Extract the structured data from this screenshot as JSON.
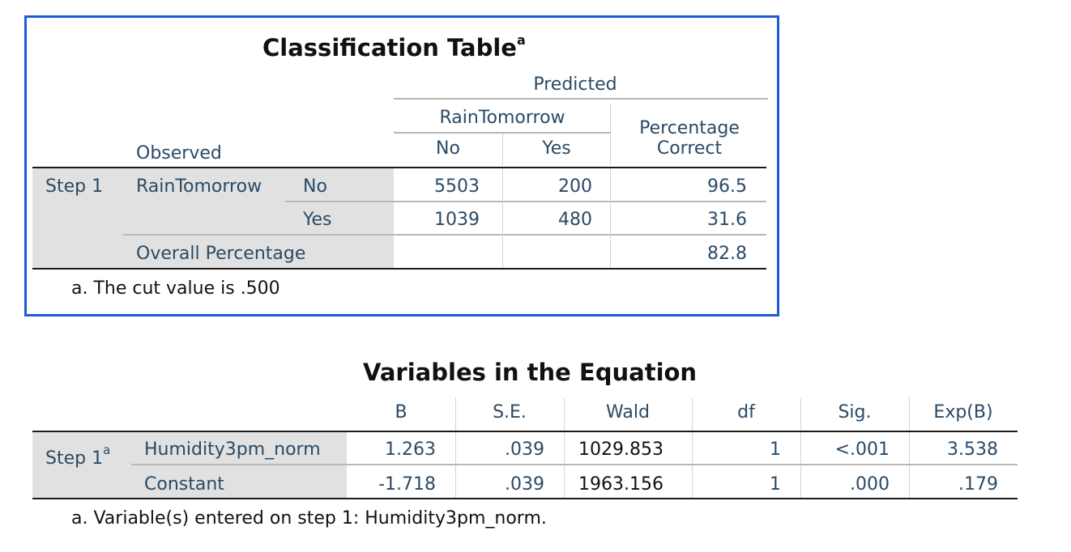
{
  "classification": {
    "title": "Classification Table",
    "title_sup": "a",
    "predicted": "Predicted",
    "rain_tomorrow": "RainTomorrow",
    "observed": "Observed",
    "col_no": "No",
    "col_yes": "Yes",
    "pct_correct_line1": "Percentage",
    "pct_correct_line2": "Correct",
    "step": "Step 1",
    "row_var": "RainTomorrow",
    "rows": [
      {
        "label": "No",
        "no": "5503",
        "yes": "200",
        "pct": "96.5"
      },
      {
        "label": "Yes",
        "no": "1039",
        "yes": "480",
        "pct": "31.6"
      }
    ],
    "overall_label": "Overall Percentage",
    "overall_pct": "82.8",
    "footnote": "a. The cut value is .500"
  },
  "variables": {
    "title": "Variables in the Equation",
    "headers": [
      "B",
      "S.E.",
      "Wald",
      "df",
      "Sig.",
      "Exp(B)"
    ],
    "step": "Step 1",
    "step_sup": "a",
    "rows": [
      {
        "label": "Humidity3pm_norm",
        "b": "1.263",
        "se": ".039",
        "wald": "1029.853",
        "df": "1",
        "sig": "<.001",
        "expb": "3.538"
      },
      {
        "label": "Constant",
        "b": "-1.718",
        "se": ".039",
        "wald": "1963.156",
        "df": "1",
        "sig": ".000",
        "expb": ".179"
      }
    ],
    "footnote": "a. Variable(s) entered on step 1: Humidity3pm_norm."
  },
  "colors": {
    "selection_border": "#1f5bd6",
    "header_text": "#2a4a66",
    "stub_background": "#e1e1e1"
  }
}
